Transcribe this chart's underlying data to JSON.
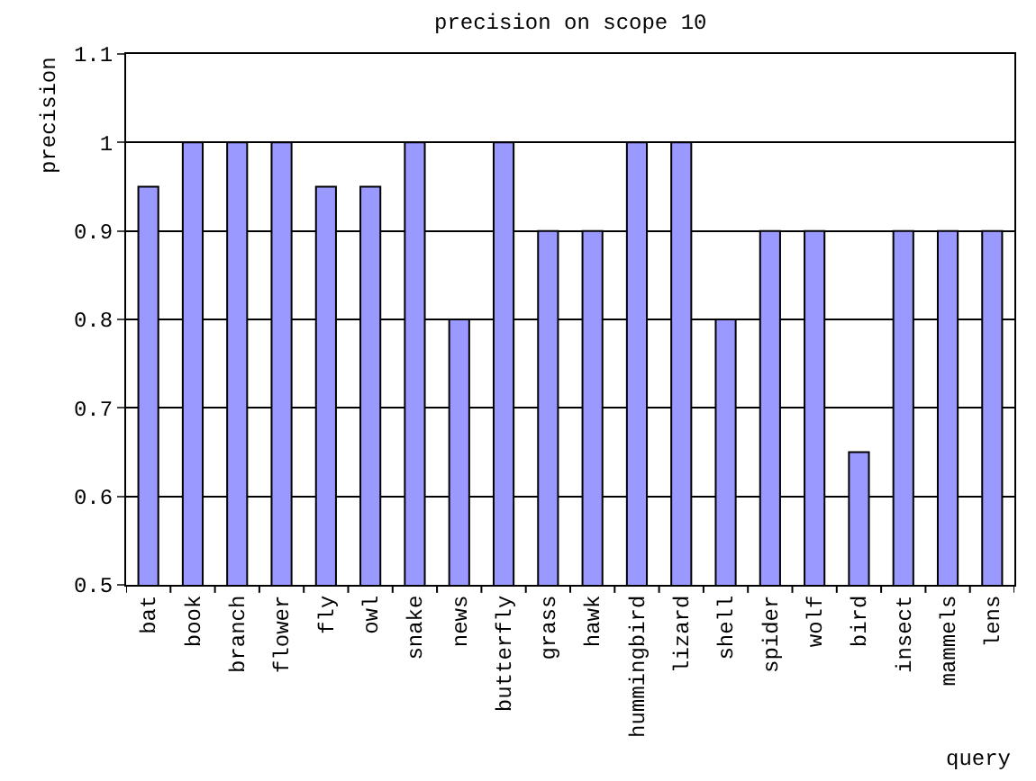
{
  "chart_data": {
    "type": "bar",
    "title": "precision on scope 10",
    "xlabel": "query",
    "ylabel": "precision",
    "categories": [
      "bat",
      "book",
      "branch",
      "flower",
      "fly",
      "owl",
      "snake",
      "news",
      "butterfly",
      "grass",
      "hawk",
      "hummingbird",
      "lizard",
      "shell",
      "spider",
      "wolf",
      "bird",
      "insect",
      "mammels",
      "lens"
    ],
    "values": [
      0.95,
      1,
      1,
      1,
      0.95,
      0.95,
      1,
      0.8,
      1,
      0.9,
      0.9,
      1,
      1,
      0.8,
      0.9,
      0.9,
      0.65,
      0.9,
      0.9,
      0.9
    ],
    "color": "#9999ff",
    "ylim": [
      0.5,
      1.1
    ],
    "yticks": [
      0.5,
      0.6,
      0.7,
      0.8,
      0.9,
      1,
      1.1
    ],
    "grid": "y"
  }
}
